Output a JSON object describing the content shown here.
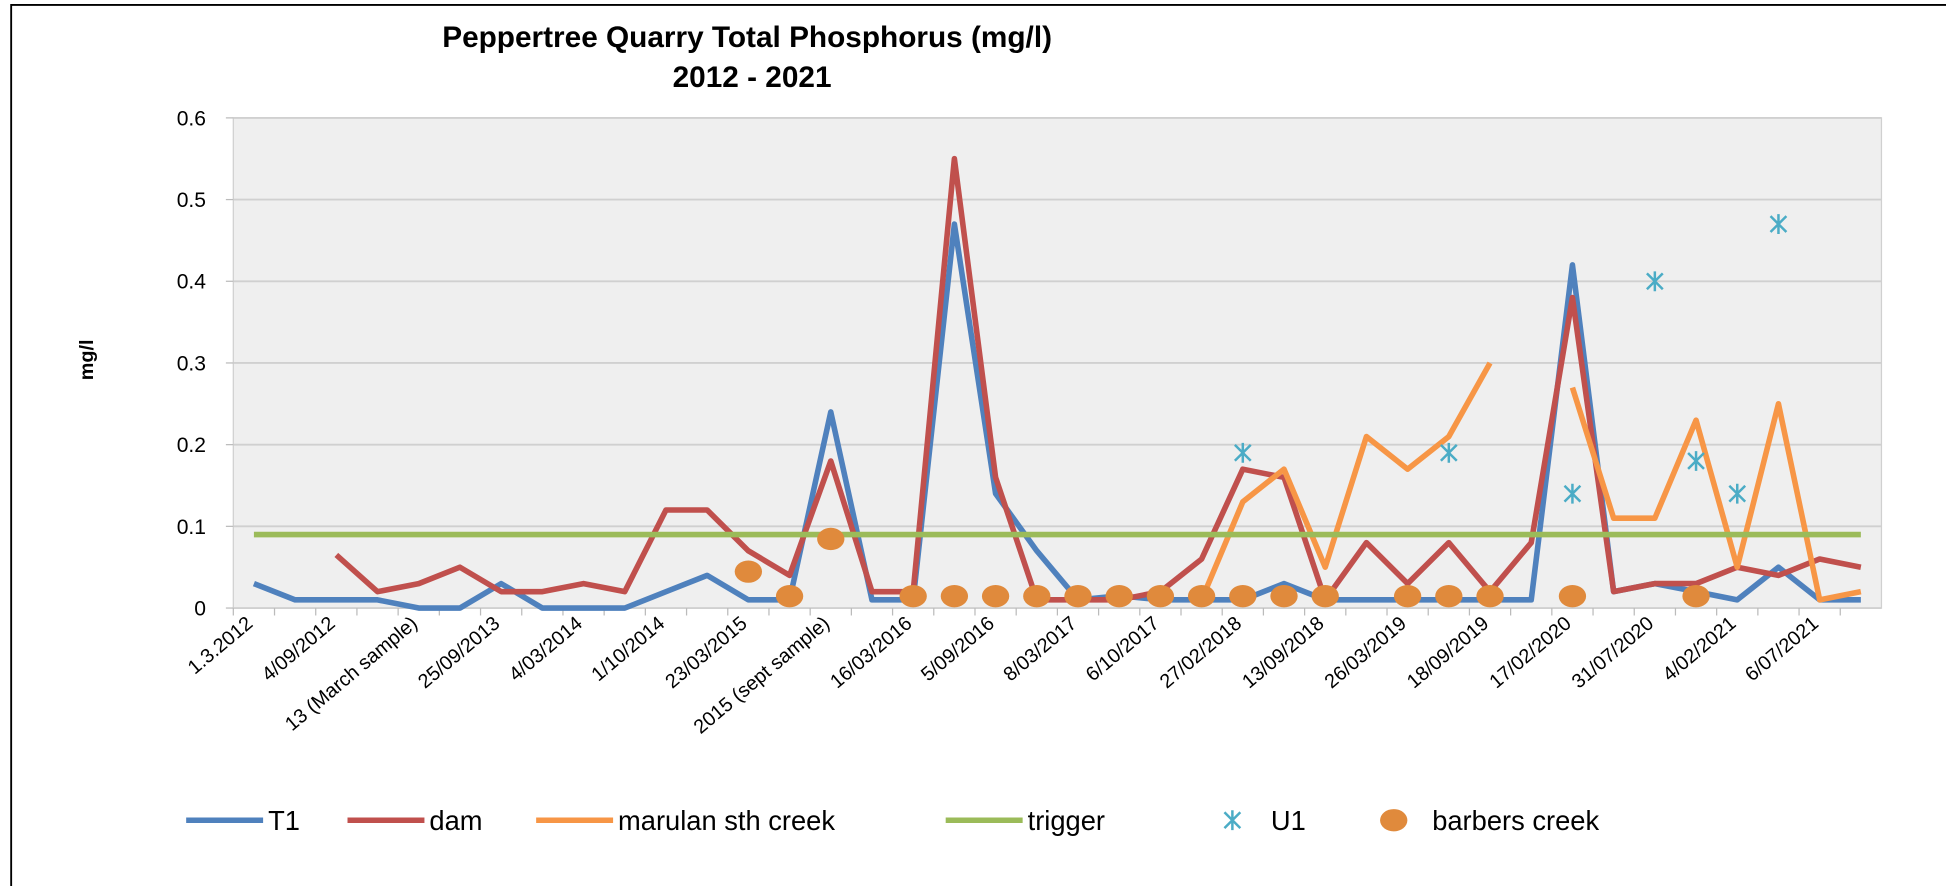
{
  "chart_data": {
    "type": "line",
    "title": "Peppertree Quarry Total Phosphorus (mg/l)",
    "subtitle": "2012 - 2021",
    "y_label": "mg/l",
    "categories": [
      "1.3.2012",
      null,
      "4/09/2012",
      null,
      "13 (March sample)",
      null,
      "25/09/2013",
      null,
      "4/03/2014",
      null,
      "1/10/2014",
      null,
      "23/03/2015",
      null,
      "2015 (sept sample)",
      null,
      "16/03/2016",
      null,
      "5/09/2016",
      null,
      "8/03/2017",
      null,
      "6/10/2017",
      null,
      "27/02/2018",
      null,
      "13/09/2018",
      null,
      "26/03/2019",
      null,
      "18/09/2019",
      null,
      "17/02/2020",
      null,
      "31/07/2020",
      null,
      "4/02/2021",
      null,
      "6/07/2021",
      null
    ],
    "ylim": [
      0,
      0.6
    ],
    "yticks": [
      0,
      0.1,
      0.2,
      0.3,
      0.4,
      0.5,
      0.6
    ],
    "grid": true,
    "legend": "bottom",
    "series": [
      {
        "name": "T1",
        "color": "#4f81bd",
        "style": "line",
        "values": [
          0.03,
          0.01,
          0.01,
          0.01,
          0,
          0,
          0.03,
          0,
          0,
          0,
          0.02,
          0.04,
          0.01,
          0.01,
          0.24,
          0.01,
          0.01,
          0.47,
          0.14,
          0.07,
          0.01,
          0.015,
          0.01,
          0.01,
          0.01,
          0.03,
          0.01,
          0.01,
          0.01,
          0.01,
          0.01,
          0.01,
          0.42,
          0.02,
          0.03,
          0.02,
          0.01,
          0.05,
          0.01,
          0.01
        ]
      },
      {
        "name": "dam",
        "color": "#c0504d",
        "style": "line",
        "values": [
          null,
          null,
          0.065,
          0.02,
          0.03,
          0.05,
          0.02,
          0.02,
          0.03,
          0.02,
          0.12,
          0.12,
          0.07,
          0.04,
          0.18,
          0.02,
          0.02,
          0.55,
          0.16,
          0.01,
          0.01,
          0.01,
          0.02,
          0.06,
          0.17,
          0.16,
          0.01,
          0.08,
          0.03,
          0.08,
          0.02,
          0.08,
          0.38,
          0.02,
          0.03,
          0.03,
          0.05,
          0.04,
          0.06,
          0.05
        ]
      },
      {
        "name": "marulan sth creek",
        "color": "#f79646",
        "style": "line",
        "values": [
          null,
          null,
          null,
          null,
          null,
          null,
          null,
          null,
          null,
          null,
          null,
          null,
          null,
          null,
          null,
          null,
          null,
          null,
          null,
          null,
          null,
          null,
          null,
          0.01,
          0.13,
          0.17,
          0.05,
          0.21,
          0.17,
          0.21,
          0.3,
          null,
          0.27,
          0.11,
          0.11,
          0.23,
          0.05,
          0.25,
          0.01,
          0.02
        ]
      },
      {
        "name": "trigger",
        "color": "#9bbb59",
        "style": "line",
        "values": [
          0.09,
          0.09,
          0.09,
          0.09,
          0.09,
          0.09,
          0.09,
          0.09,
          0.09,
          0.09,
          0.09,
          0.09,
          0.09,
          0.09,
          0.09,
          0.09,
          0.09,
          0.09,
          0.09,
          0.09,
          0.09,
          0.09,
          0.09,
          0.09,
          0.09,
          0.09,
          0.09,
          0.09,
          0.09,
          0.09,
          0.09,
          0.09,
          0.09,
          0.09,
          0.09,
          0.09,
          0.09,
          0.09,
          0.09,
          0.09
        ]
      },
      {
        "name": "U1",
        "color": "#4bacc6",
        "style": "asterisk",
        "values": [
          null,
          null,
          null,
          null,
          null,
          null,
          null,
          null,
          null,
          null,
          null,
          null,
          null,
          null,
          null,
          null,
          null,
          null,
          null,
          null,
          null,
          null,
          null,
          null,
          0.19,
          null,
          null,
          null,
          null,
          0.19,
          null,
          null,
          0.14,
          null,
          0.4,
          0.18,
          0.14,
          0.47,
          null,
          null
        ]
      },
      {
        "name": "barbers creek",
        "color": "#e08a3c",
        "style": "dot",
        "values": [
          null,
          null,
          null,
          null,
          null,
          null,
          null,
          null,
          null,
          null,
          null,
          null,
          0.04,
          0.01,
          0.08,
          null,
          0.01,
          0.01,
          0.01,
          0.01,
          0.01,
          0.01,
          0.01,
          0.01,
          0.01,
          0.01,
          0.01,
          null,
          0.01,
          0.01,
          0.01,
          null,
          0.01,
          null,
          null,
          0.01,
          null,
          null,
          null,
          null
        ]
      }
    ]
  }
}
